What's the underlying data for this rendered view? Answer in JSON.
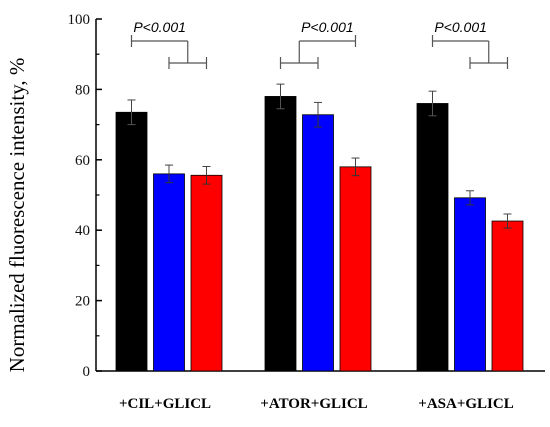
{
  "chart_data": {
    "type": "bar",
    "ylabel": "Normalized fluorescence intensity, %",
    "xlabel": "",
    "ylim": [
      0,
      100
    ],
    "yticks": [
      0,
      20,
      40,
      60,
      80,
      100
    ],
    "categories": [
      "+CIL+GLICL",
      "+ATOR+GLICL",
      "+ASA+GLICL"
    ],
    "series": [
      {
        "values": [
          73.5,
          78.0,
          76.0
        ],
        "errors": [
          3.5,
          3.5,
          3.5
        ],
        "color": "#000000"
      },
      {
        "values": [
          56.0,
          72.8,
          49.2
        ],
        "errors": [
          2.5,
          3.5,
          2.0
        ],
        "color": "#0000ff"
      },
      {
        "values": [
          55.6,
          58.0,
          42.6
        ],
        "errors": [
          2.5,
          2.5,
          2.0
        ],
        "color": "#ff0000"
      }
    ],
    "significance": [
      {
        "text": "P<0.001",
        "group": 0,
        "outer_series": 0,
        "inner_series": [
          1,
          2
        ]
      },
      {
        "text": "P<0.001",
        "group": 1,
        "outer_series": 2,
        "inner_series": [
          0,
          1
        ]
      },
      {
        "text": "P<0.001",
        "group": 2,
        "outer_series": 0,
        "inner_series": [
          1,
          2
        ]
      }
    ],
    "grid": false,
    "legend": "none"
  }
}
